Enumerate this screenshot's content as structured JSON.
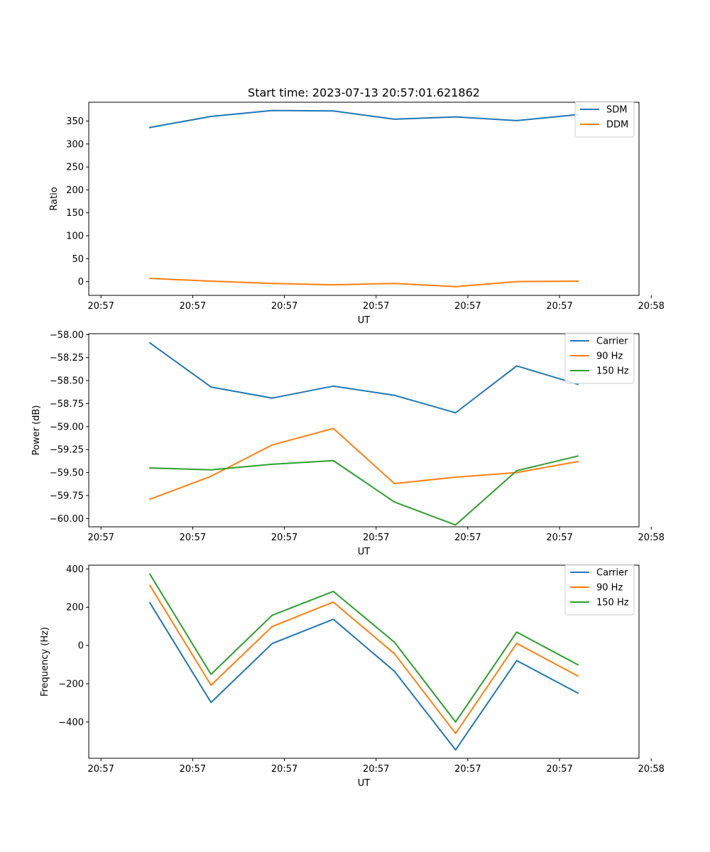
{
  "title": "Start time: 2023-07-13 20:57:01.621862",
  "colors": {
    "blue": "#1f77b4",
    "orange": "#ff7f0e",
    "green": "#2ca02c"
  },
  "chart_data": [
    {
      "type": "line",
      "title": "Start time: 2023-07-13 20:57:01.621862",
      "xlabel": "UT",
      "ylabel": "Ratio",
      "x": [
        1,
        2,
        3,
        4,
        5,
        6,
        7,
        8
      ],
      "xlim": [
        0,
        9
      ],
      "x_ticks": [
        0.2,
        1.7,
        3.2,
        4.7,
        6.2,
        7.7,
        9.2
      ],
      "x_tick_labels": [
        "20:57",
        "20:57",
        "20:57",
        "20:57",
        "20:57",
        "20:57",
        "20:58"
      ],
      "ylim": [
        -30,
        391
      ],
      "y_ticks": [
        0,
        50,
        100,
        150,
        200,
        250,
        300,
        350
      ],
      "y_tick_labels": [
        "0",
        "50",
        "100",
        "150",
        "200",
        "250",
        "300",
        "350"
      ],
      "legend": "top-right",
      "series": [
        {
          "name": "SDM",
          "color": "#1f77b4",
          "values": [
            336,
            360,
            373,
            372,
            354,
            359,
            351,
            364
          ]
        },
        {
          "name": "DDM",
          "color": "#ff7f0e",
          "values": [
            7,
            1,
            -4,
            -7,
            -4,
            -11,
            0,
            1
          ]
        }
      ]
    },
    {
      "type": "line",
      "xlabel": "UT",
      "ylabel": "Power (dB)",
      "x": [
        1,
        2,
        3,
        4,
        5,
        6,
        7,
        8
      ],
      "xlim": [
        0,
        9
      ],
      "x_ticks": [
        0.2,
        1.7,
        3.2,
        4.7,
        6.2,
        7.7,
        9.2
      ],
      "x_tick_labels": [
        "20:57",
        "20:57",
        "20:57",
        "20:57",
        "20:57",
        "20:57",
        "20:58"
      ],
      "ylim": [
        -60.09,
        -57.99
      ],
      "y_ticks": [
        -60.0,
        -59.75,
        -59.5,
        -59.25,
        -59.0,
        -58.75,
        -58.5,
        -58.25,
        -58.0
      ],
      "y_tick_labels": [
        "−60.00",
        "−59.75",
        "−59.50",
        "−59.25",
        "−59.00",
        "−58.75",
        "−58.50",
        "−58.25",
        "−58.00"
      ],
      "legend": "top-right",
      "series": [
        {
          "name": "Carrier",
          "color": "#1f77b4",
          "values": [
            -58.09,
            -58.57,
            -58.69,
            -58.56,
            -58.66,
            -58.85,
            -58.34,
            -58.54
          ]
        },
        {
          "name": "90 Hz",
          "color": "#ff7f0e",
          "values": [
            -59.79,
            -59.54,
            -59.2,
            -59.02,
            -59.62,
            -59.55,
            -59.5,
            -59.38
          ]
        },
        {
          "name": "150 Hz",
          "color": "#2ca02c",
          "values": [
            -59.45,
            -59.47,
            -59.41,
            -59.37,
            -59.82,
            -60.07,
            -59.48,
            -59.32
          ]
        }
      ]
    },
    {
      "type": "line",
      "xlabel": "UT",
      "ylabel": "Frequency (Hz)",
      "x": [
        1,
        2,
        3,
        4,
        5,
        6,
        7,
        8
      ],
      "xlim": [
        0,
        9
      ],
      "x_ticks": [
        0.2,
        1.7,
        3.2,
        4.7,
        6.2,
        7.7,
        9.2
      ],
      "x_tick_labels": [
        "20:57",
        "20:57",
        "20:57",
        "20:57",
        "20:57",
        "20:57",
        "20:58"
      ],
      "ylim": [
        -590,
        420
      ],
      "y_ticks": [
        -400,
        -200,
        0,
        200,
        400
      ],
      "y_tick_labels": [
        "−400",
        "−200",
        "0",
        "200",
        "400"
      ],
      "legend": "top-right",
      "series": [
        {
          "name": "Carrier",
          "color": "#1f77b4",
          "values": [
            223,
            -298,
            10,
            137,
            -135,
            -546,
            -79,
            -249
          ]
        },
        {
          "name": "90 Hz",
          "color": "#ff7f0e",
          "values": [
            314,
            -208,
            99,
            227,
            -43,
            -460,
            11,
            -160
          ]
        },
        {
          "name": "150 Hz",
          "color": "#2ca02c",
          "values": [
            373,
            -151,
            158,
            283,
            17,
            -400,
            70,
            -101
          ]
        }
      ]
    }
  ]
}
